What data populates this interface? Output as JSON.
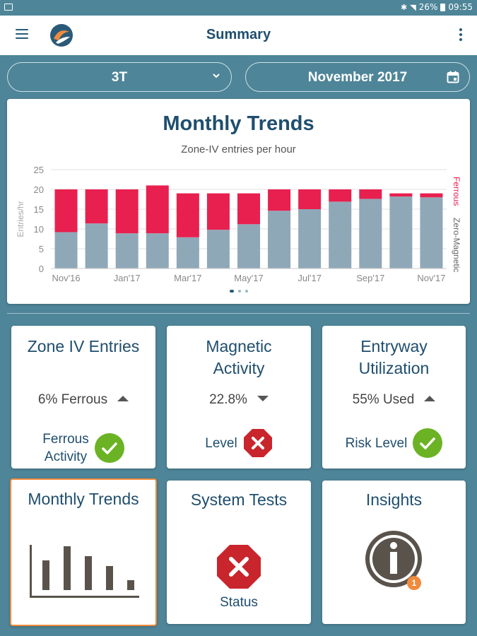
{
  "status_bar": {
    "battery": "26%",
    "time": "09:55"
  },
  "app_bar": {
    "title": "Summary"
  },
  "selectors": {
    "scanner": "3T",
    "month": "November 2017"
  },
  "chart_card": {
    "title": "Monthly Trends",
    "subtitle": "Zone-IV entries per hour",
    "page_count": 3,
    "active_page": 0
  },
  "chart_data": {
    "type": "bar",
    "stacked": true,
    "title": "Monthly Trends",
    "subtitle": "Zone-IV entries per hour",
    "ylabel": "Entries/hr",
    "ylim": [
      0,
      25
    ],
    "yticks": [
      0,
      5,
      10,
      15,
      20,
      25
    ],
    "grid": true,
    "legend_placement": "right, vertical",
    "categories": [
      "Nov'16",
      "Dec'16",
      "Jan'17",
      "Feb'17",
      "Mar'17",
      "Apr'17",
      "May'17",
      "Jun'17",
      "Jul'17",
      "Aug'17",
      "Sep'17",
      "Oct'17",
      "Nov'17"
    ],
    "xtick_labels": [
      "Nov'16",
      "",
      "Jan'17",
      "",
      "Mar'17",
      "",
      "May'17",
      "",
      "Jul'17",
      "",
      "Sep'17",
      "",
      "Nov'17"
    ],
    "series": [
      {
        "name": "Zero-Magnetic",
        "color": "#8fa8b8",
        "values": [
          9.2,
          11.4,
          8.9,
          8.9,
          7.9,
          9.8,
          11.2,
          14.6,
          15.0,
          16.9,
          17.6,
          18.2,
          18.0
        ]
      },
      {
        "name": "Ferrous",
        "color": "#e8204f",
        "values": [
          10.8,
          8.6,
          11.1,
          12.1,
          11.1,
          9.2,
          7.8,
          5.4,
          5.0,
          3.1,
          2.4,
          0.8,
          1.0
        ]
      }
    ]
  },
  "tiles": {
    "zone_iv": {
      "title": "Zone IV Entries",
      "metric": "6% Ferrous",
      "trend": "up",
      "status_label_1": "Ferrous",
      "status_label_2": "Activity",
      "status": "ok"
    },
    "magnetic": {
      "title_1": "Magnetic",
      "title_2": "Activity",
      "metric": "22.8%",
      "trend": "down",
      "status_label": "Level",
      "status": "alert"
    },
    "entryway": {
      "title_1": "Entryway",
      "title_2": "Utilization",
      "metric": "55% Used",
      "trend": "up",
      "status_label": "Risk Level",
      "status": "ok"
    },
    "monthly": {
      "title": "Monthly Trends"
    },
    "system_tests": {
      "title": "System Tests",
      "status_label": "Status",
      "status": "alert"
    },
    "insights": {
      "title": "Insights",
      "badge_count": "1"
    }
  },
  "colors": {
    "primary": "#1f4e6e",
    "background": "#4e8598",
    "ferrous": "#e8204f",
    "zero_magnetic": "#8fa8b8",
    "ok": "#6bb324",
    "alert": "#c9252c",
    "highlight": "#f08a3c",
    "badge": "#f08a3c"
  }
}
